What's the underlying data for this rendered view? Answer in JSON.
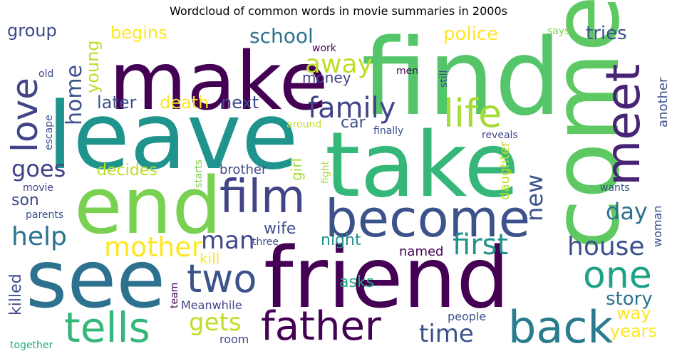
{
  "title": "Wordcloud of common words in movie summaries in 2000s",
  "words": [
    {
      "text": "find",
      "color": "#54c568"
    },
    {
      "text": "leave",
      "color": "#1f948c"
    },
    {
      "text": "take",
      "color": "#35b779"
    },
    {
      "text": "make",
      "color": "#440154"
    },
    {
      "text": "come",
      "color": "#5ec962"
    },
    {
      "text": "friend",
      "color": "#440154"
    },
    {
      "text": "see",
      "color": "#2c728e"
    },
    {
      "text": "end",
      "color": "#7ad151"
    },
    {
      "text": "become",
      "color": "#3b528b"
    },
    {
      "text": "film",
      "color": "#414487"
    },
    {
      "text": "meet",
      "color": "#482475"
    },
    {
      "text": "back",
      "color": "#287c8e"
    },
    {
      "text": "father",
      "color": "#440154"
    },
    {
      "text": "tells",
      "color": "#35b779"
    },
    {
      "text": "two",
      "color": "#3b528b"
    },
    {
      "text": "love",
      "color": "#414487"
    },
    {
      "text": "life",
      "color": "#a5db36"
    },
    {
      "text": "one",
      "color": "#1fa187"
    },
    {
      "text": "family",
      "color": "#414487"
    },
    {
      "text": "house",
      "color": "#3b528b"
    },
    {
      "text": "first",
      "color": "#21918c"
    },
    {
      "text": "mother",
      "color": "#fde725"
    },
    {
      "text": "man",
      "color": "#3e4989"
    },
    {
      "text": "help",
      "color": "#2c728e"
    },
    {
      "text": "gets",
      "color": "#bddf26"
    },
    {
      "text": "time",
      "color": "#3b528b"
    },
    {
      "text": "home",
      "color": "#3b528b"
    },
    {
      "text": "goes",
      "color": "#414487"
    },
    {
      "text": "day",
      "color": "#2c728e"
    },
    {
      "text": "new",
      "color": "#3b528b"
    },
    {
      "text": "away",
      "color": "#bddf26"
    },
    {
      "text": "police",
      "color": "#fde725"
    },
    {
      "text": "school",
      "color": "#2c728e"
    },
    {
      "text": "tries",
      "color": "#3b528b"
    },
    {
      "text": "story",
      "color": "#2c728e"
    },
    {
      "text": "years",
      "color": "#fde725"
    },
    {
      "text": "way",
      "color": "#fde725"
    },
    {
      "text": "group",
      "color": "#3e4989"
    },
    {
      "text": "begins",
      "color": "#fde725"
    },
    {
      "text": "young",
      "color": "#bddf26"
    },
    {
      "text": "later",
      "color": "#3b528b"
    },
    {
      "text": "death",
      "color": "#fde725"
    },
    {
      "text": "next",
      "color": "#3e4989"
    },
    {
      "text": "money",
      "color": "#414487"
    },
    {
      "text": "car",
      "color": "#3b528b"
    },
    {
      "text": "decides",
      "color": "#bddf26"
    },
    {
      "text": "brother",
      "color": "#3e4989"
    },
    {
      "text": "girl",
      "color": "#a5db36"
    },
    {
      "text": "son",
      "color": "#3e4989"
    },
    {
      "text": "wife",
      "color": "#3b528b"
    },
    {
      "text": "night",
      "color": "#21918c"
    },
    {
      "text": "kill",
      "color": "#fde725"
    },
    {
      "text": "killed",
      "color": "#3e4989"
    },
    {
      "text": "asks",
      "color": "#22a884"
    },
    {
      "text": "named",
      "color": "#440154"
    },
    {
      "text": "daughter",
      "color": "#bddf26"
    },
    {
      "text": "another",
      "color": "#3b528b"
    },
    {
      "text": "woman",
      "color": "#3e4989"
    },
    {
      "text": "Meanwhile",
      "color": "#414487"
    },
    {
      "text": "people",
      "color": "#3b528b"
    },
    {
      "text": "room",
      "color": "#3e4989"
    },
    {
      "text": "team",
      "color": "#440154"
    },
    {
      "text": "together",
      "color": "#22a884"
    },
    {
      "text": "parents",
      "color": "#3b528b"
    },
    {
      "text": "movie",
      "color": "#414487"
    },
    {
      "text": "escape",
      "color": "#3b528b"
    },
    {
      "text": "old",
      "color": "#3e4989"
    },
    {
      "text": "work",
      "color": "#440154"
    },
    {
      "text": "men",
      "color": "#440154"
    },
    {
      "text": "still",
      "color": "#3e4989"
    },
    {
      "text": "around",
      "color": "#bddf26"
    },
    {
      "text": "finally",
      "color": "#3b528b"
    },
    {
      "text": "reveals",
      "color": "#414487"
    },
    {
      "text": "starts",
      "color": "#7ad151"
    },
    {
      "text": "fight",
      "color": "#a5db36"
    },
    {
      "text": "three",
      "color": "#3e4989"
    },
    {
      "text": "wants",
      "color": "#3b528b"
    },
    {
      "text": "says",
      "color": "#7ad151"
    }
  ]
}
